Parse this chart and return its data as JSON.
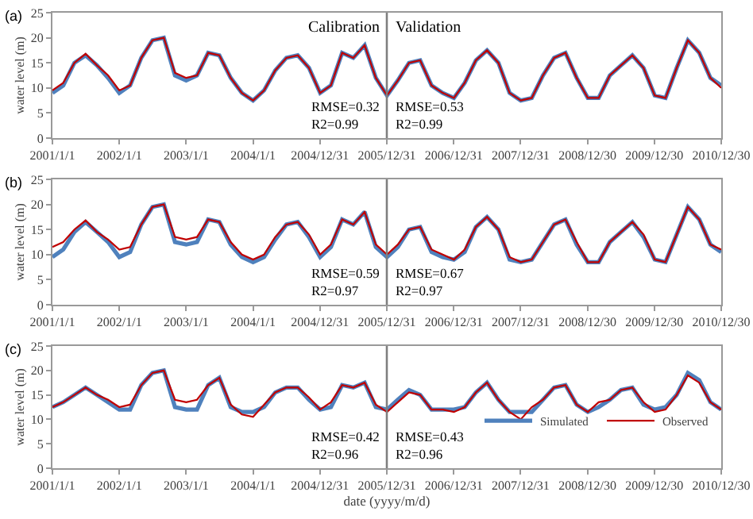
{
  "chart_data": [
    {
      "type": "line",
      "annotations": [
        "(a)",
        "Calibration",
        "Validation",
        "RMSE=0.32\nR2=0.99",
        "RMSE=0.53\nR2=0.99"
      ],
      "ylabel": "water level (m)",
      "ylim": [
        0,
        25
      ],
      "yticks": [
        0,
        5,
        10,
        15,
        20,
        25
      ],
      "xlim": [
        "2001-01-01",
        "2010-12-30"
      ],
      "xticks": [
        {
          "value": "2001-01-01",
          "label": "2001/1/1"
        },
        {
          "value": "2002-01-01",
          "label": "2002/1/1"
        },
        {
          "value": "2003-01-01",
          "label": "2003/1/1"
        },
        {
          "value": "2004-01-01",
          "label": "2004/1/1"
        },
        {
          "value": "2004-12-31",
          "label": "2004/12/31"
        },
        {
          "value": "2005-12-31",
          "label": "2005/12/31"
        },
        {
          "value": "2006-12-31",
          "label": "2006/12/31"
        },
        {
          "value": "2007-12-31",
          "label": "2007/12/31"
        },
        {
          "value": "2008-12-30",
          "label": "2008/12/30"
        },
        {
          "value": "2009-12-30",
          "label": "2009/12/30"
        },
        {
          "value": "2010-12-30",
          "label": "2010/12/30"
        }
      ],
      "x": [
        "2001-01-01",
        "2001-03-01",
        "2001-05-01",
        "2001-07-01",
        "2001-09-01",
        "2001-11-01",
        "2002-01-01",
        "2002-03-01",
        "2002-05-01",
        "2002-07-01",
        "2002-09-01",
        "2002-11-01",
        "2003-01-01",
        "2003-03-01",
        "2003-05-01",
        "2003-07-01",
        "2003-09-01",
        "2003-11-01",
        "2004-01-01",
        "2004-03-01",
        "2004-05-01",
        "2004-07-01",
        "2004-09-01",
        "2004-11-01",
        "2005-01-01",
        "2005-03-01",
        "2005-05-01",
        "2005-07-01",
        "2005-09-01",
        "2005-11-01",
        "2006-01-01",
        "2006-03-01",
        "2006-05-01",
        "2006-07-01",
        "2006-09-01",
        "2006-11-01",
        "2007-01-01",
        "2007-03-01",
        "2007-05-01",
        "2007-07-01",
        "2007-09-01",
        "2007-11-01",
        "2008-01-01",
        "2008-03-01",
        "2008-05-01",
        "2008-07-01",
        "2008-09-01",
        "2008-11-01",
        "2009-01-01",
        "2009-03-01",
        "2009-05-01",
        "2009-07-01",
        "2009-09-01",
        "2009-11-01",
        "2010-01-01",
        "2010-03-01",
        "2010-05-01",
        "2010-07-01",
        "2010-09-01",
        "2010-11-01",
        "2010-12-30"
      ],
      "ref_lines": [
        {
          "axis": "x",
          "value": "2005-12-31",
          "color": "#7f7f7f"
        }
      ],
      "grid": false,
      "legend": false,
      "series": [
        {
          "color": "#4f81bd",
          "values": [
            9,
            10.5,
            15,
            16.5,
            14.5,
            12,
            9,
            10.5,
            16,
            19.5,
            20,
            12.5,
            11.5,
            12.5,
            17,
            16.5,
            12,
            9,
            7.5,
            9.5,
            13.5,
            16,
            16.5,
            14,
            9,
            10.5,
            17,
            16,
            18.5,
            12,
            8.5,
            11.5,
            15,
            15.5,
            10.5,
            9,
            8,
            11,
            15.5,
            17.5,
            15,
            9,
            7.5,
            8,
            12.5,
            16,
            17,
            12,
            8,
            8,
            12.5,
            14.5,
            16.5,
            14,
            8.5,
            8,
            14,
            19.5,
            17,
            12,
            10.5
          ]
        },
        {
          "color": "#c00000",
          "values": [
            9.5,
            11,
            15,
            16.8,
            14.5,
            12.5,
            9.5,
            10.5,
            16,
            19.5,
            20,
            13,
            12,
            12.5,
            17,
            16.5,
            12,
            9,
            7.5,
            9.5,
            13.5,
            16,
            16.5,
            14,
            9,
            10.5,
            17,
            16,
            18.5,
            12,
            8.5,
            11.5,
            15,
            15.5,
            10.5,
            9,
            8,
            11,
            15.5,
            17.5,
            15,
            9,
            7.5,
            8,
            12.5,
            16,
            17,
            12,
            8,
            8,
            12.5,
            14.5,
            16.5,
            14,
            8.5,
            8,
            14,
            19.5,
            17,
            12,
            10
          ]
        }
      ]
    },
    {
      "type": "line",
      "annotations": [
        "(b)",
        "RMSE=0.59\nR2=0.97",
        "RMSE=0.67\nR2=0.97"
      ],
      "ylabel": "water level (m)",
      "ylim": [
        0,
        25
      ],
      "yticks": [
        0,
        5,
        10,
        15,
        20,
        25
      ],
      "xlim": [
        "2001-01-01",
        "2010-12-30"
      ],
      "xticks": [
        {
          "value": "2001-01-01",
          "label": "2001/1/1"
        },
        {
          "value": "2002-01-01",
          "label": "2002/1/1"
        },
        {
          "value": "2003-01-01",
          "label": "2003/1/1"
        },
        {
          "value": "2004-01-01",
          "label": "2004/1/1"
        },
        {
          "value": "2004-12-31",
          "label": "2004/12/31"
        },
        {
          "value": "2005-12-31",
          "label": "2005/12/31"
        },
        {
          "value": "2006-12-31",
          "label": "2006/12/31"
        },
        {
          "value": "2007-12-31",
          "label": "2007/12/31"
        },
        {
          "value": "2008-12-30",
          "label": "2008/12/30"
        },
        {
          "value": "2009-12-30",
          "label": "2009/12/30"
        },
        {
          "value": "2010-12-30",
          "label": "2010/12/30"
        }
      ],
      "x": [
        "2001-01-01",
        "2001-03-01",
        "2001-05-01",
        "2001-07-01",
        "2001-09-01",
        "2001-11-01",
        "2002-01-01",
        "2002-03-01",
        "2002-05-01",
        "2002-07-01",
        "2002-09-01",
        "2002-11-01",
        "2003-01-01",
        "2003-03-01",
        "2003-05-01",
        "2003-07-01",
        "2003-09-01",
        "2003-11-01",
        "2004-01-01",
        "2004-03-01",
        "2004-05-01",
        "2004-07-01",
        "2004-09-01",
        "2004-11-01",
        "2005-01-01",
        "2005-03-01",
        "2005-05-01",
        "2005-07-01",
        "2005-09-01",
        "2005-11-01",
        "2006-01-01",
        "2006-03-01",
        "2006-05-01",
        "2006-07-01",
        "2006-09-01",
        "2006-11-01",
        "2007-01-01",
        "2007-03-01",
        "2007-05-01",
        "2007-07-01",
        "2007-09-01",
        "2007-11-01",
        "2008-01-01",
        "2008-03-01",
        "2008-05-01",
        "2008-07-01",
        "2008-09-01",
        "2008-11-01",
        "2009-01-01",
        "2009-03-01",
        "2009-05-01",
        "2009-07-01",
        "2009-09-01",
        "2009-11-01",
        "2010-01-01",
        "2010-03-01",
        "2010-05-01",
        "2010-07-01",
        "2010-09-01",
        "2010-11-01",
        "2010-12-30"
      ],
      "ref_lines": [
        {
          "axis": "x",
          "value": "2005-12-31",
          "color": "#7f7f7f"
        }
      ],
      "grid": false,
      "legend": false,
      "series": [
        {
          "color": "#4f81bd",
          "values": [
            9.5,
            11,
            14.5,
            16.5,
            14.5,
            12.5,
            9.5,
            10.5,
            16,
            19.5,
            20,
            12.5,
            12,
            12.5,
            17,
            16.5,
            12,
            9.5,
            8.5,
            9.5,
            13,
            16,
            16.5,
            13.5,
            9.5,
            11.5,
            17,
            16,
            18.5,
            11.5,
            9.5,
            11.5,
            15,
            15.5,
            10.5,
            9.5,
            9,
            10.5,
            15.5,
            17.5,
            15,
            9,
            8.5,
            9,
            12.5,
            16,
            17,
            12,
            8.5,
            8.5,
            12.5,
            14.5,
            16.5,
            13.5,
            9,
            8.5,
            14,
            19.5,
            17,
            12,
            10.5
          ]
        },
        {
          "color": "#c00000",
          "values": [
            11.5,
            12.5,
            15,
            16.8,
            14.5,
            13,
            11,
            11.5,
            16,
            19.5,
            20,
            13.5,
            13,
            13.5,
            17,
            16.5,
            12.5,
            10,
            9,
            10,
            13.5,
            16,
            16.5,
            14,
            10,
            12,
            17,
            16,
            18.5,
            12,
            10,
            12,
            15,
            15.5,
            11,
            10,
            9,
            11,
            15.5,
            17.5,
            15,
            9.5,
            8.5,
            9,
            12.5,
            16,
            17,
            12.5,
            8.5,
            8.5,
            12.5,
            14.5,
            16.5,
            14,
            9,
            8.5,
            14,
            19.5,
            17,
            12,
            11
          ]
        }
      ]
    },
    {
      "type": "line",
      "annotations": [
        "(c)",
        "RMSE=0.42\nR2=0.96",
        "RMSE=0.43\nR2=0.96"
      ],
      "xlabel": "date (yyyy/m/d)",
      "ylabel": "water level (m)",
      "ylim": [
        0,
        25
      ],
      "yticks": [
        0,
        5,
        10,
        15,
        20,
        25
      ],
      "xlim": [
        "2001-01-01",
        "2010-12-30"
      ],
      "xticks": [
        {
          "value": "2001-01-01",
          "label": "2001/1/1"
        },
        {
          "value": "2002-01-01",
          "label": "2002/1/1"
        },
        {
          "value": "2003-01-01",
          "label": "2003/1/1"
        },
        {
          "value": "2004-01-01",
          "label": "2004/1/1"
        },
        {
          "value": "2004-12-31",
          "label": "2004/12/31"
        },
        {
          "value": "2005-12-31",
          "label": "2005/12/31"
        },
        {
          "value": "2006-12-31",
          "label": "2006/12/31"
        },
        {
          "value": "2007-12-31",
          "label": "2007/12/31"
        },
        {
          "value": "2008-12-30",
          "label": "2008/12/30"
        },
        {
          "value": "2009-12-30",
          "label": "2009/12/30"
        },
        {
          "value": "2010-12-30",
          "label": "2010/12/30"
        }
      ],
      "x": [
        "2001-01-01",
        "2001-03-01",
        "2001-05-01",
        "2001-07-01",
        "2001-09-01",
        "2001-11-01",
        "2002-01-01",
        "2002-03-01",
        "2002-05-01",
        "2002-07-01",
        "2002-09-01",
        "2002-11-01",
        "2003-01-01",
        "2003-03-01",
        "2003-05-01",
        "2003-07-01",
        "2003-09-01",
        "2003-11-01",
        "2004-01-01",
        "2004-03-01",
        "2004-05-01",
        "2004-07-01",
        "2004-09-01",
        "2004-11-01",
        "2005-01-01",
        "2005-03-01",
        "2005-05-01",
        "2005-07-01",
        "2005-09-01",
        "2005-11-01",
        "2006-01-01",
        "2006-03-01",
        "2006-05-01",
        "2006-07-01",
        "2006-09-01",
        "2006-11-01",
        "2007-01-01",
        "2007-03-01",
        "2007-05-01",
        "2007-07-01",
        "2007-09-01",
        "2007-11-01",
        "2008-01-01",
        "2008-03-01",
        "2008-05-01",
        "2008-07-01",
        "2008-09-01",
        "2008-11-01",
        "2009-01-01",
        "2009-03-01",
        "2009-05-01",
        "2009-07-01",
        "2009-09-01",
        "2009-11-01",
        "2010-01-01",
        "2010-03-01",
        "2010-05-01",
        "2010-07-01",
        "2010-09-01",
        "2010-11-01",
        "2010-12-30"
      ],
      "ref_lines": [
        {
          "axis": "x",
          "value": "2005-12-31",
          "color": "#7f7f7f"
        }
      ],
      "grid": false,
      "legend": "bottom right",
      "series": [
        {
          "name": "Simulated",
          "color": "#4f81bd",
          "values": [
            12.5,
            13.5,
            15,
            16.5,
            15,
            13.5,
            12,
            12,
            17,
            19.5,
            20,
            12.5,
            12,
            12,
            17,
            18.5,
            12.5,
            11.5,
            11.5,
            12.5,
            15.5,
            16.5,
            16.5,
            14,
            12,
            12.5,
            17,
            16.5,
            17.5,
            12.5,
            12,
            14,
            16,
            15,
            12,
            12,
            12,
            12.5,
            15.5,
            17.5,
            14,
            11.5,
            11.5,
            11.5,
            14,
            16.5,
            17,
            13,
            11.5,
            12.5,
            14,
            16,
            16.5,
            13,
            12,
            12.5,
            15,
            19.5,
            18,
            13.5,
            12
          ]
        },
        {
          "name": "Observed",
          "color": "#c00000",
          "values": [
            12.5,
            13.5,
            15,
            16.5,
            15,
            14,
            12.5,
            13,
            17,
            19.5,
            20,
            14,
            13.5,
            14,
            17,
            18.5,
            13,
            11,
            10.5,
            13,
            15.5,
            16.5,
            16.5,
            14.5,
            12,
            13.5,
            17,
            16.5,
            17.5,
            13,
            11.5,
            13.5,
            15.5,
            15,
            12,
            12,
            11.5,
            12.5,
            15.5,
            17.5,
            14,
            11.5,
            10,
            12.5,
            14,
            16.5,
            17,
            13,
            11.5,
            13.5,
            14,
            16,
            16.5,
            13.5,
            11.5,
            12,
            15,
            19,
            17.5,
            13.5,
            12
          ]
        }
      ]
    }
  ]
}
